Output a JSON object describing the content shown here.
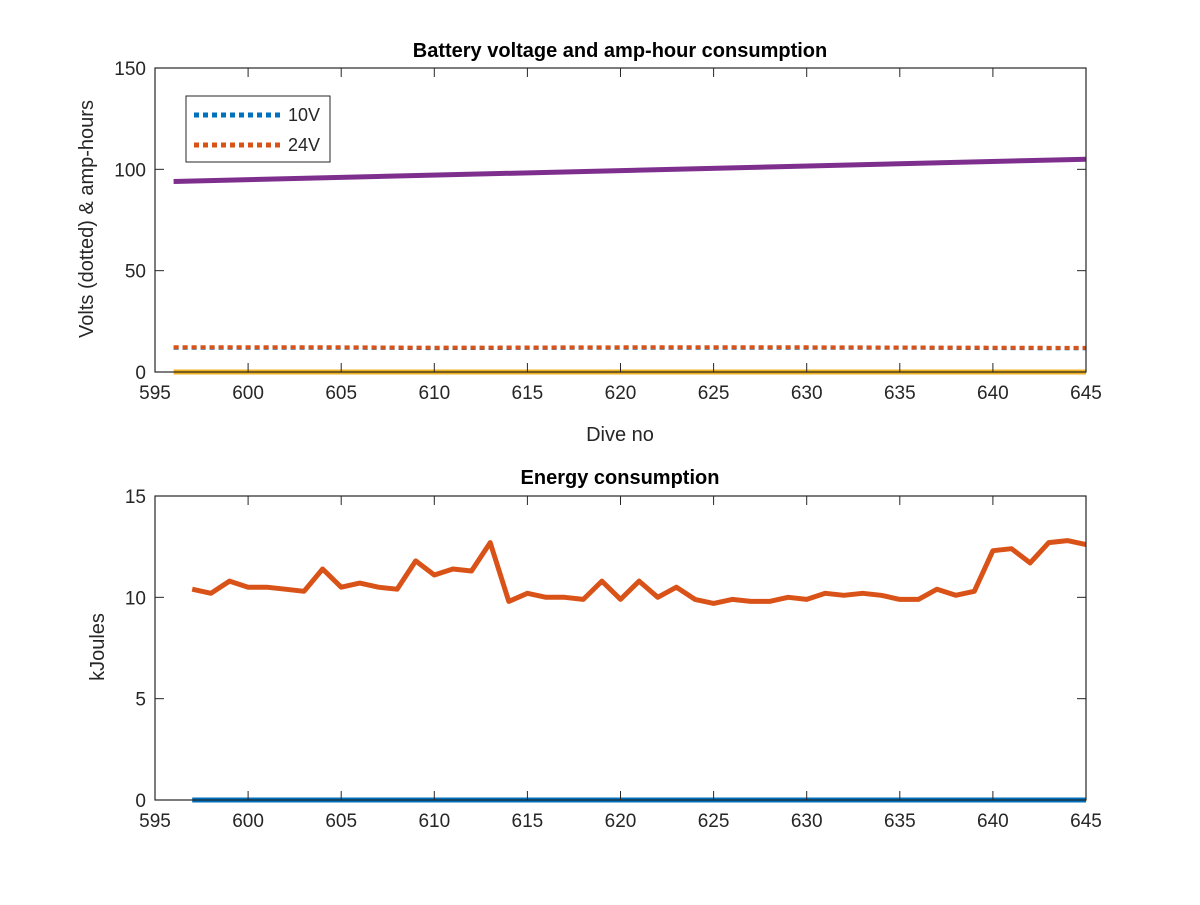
{
  "chart_data": [
    {
      "type": "line",
      "title": "Battery voltage and amp-hour consumption",
      "xlabel": "Dive no",
      "ylabel": "Volts (dotted) & amp-hours",
      "xlim": [
        595,
        645
      ],
      "ylim": [
        0,
        150
      ],
      "xticks": [
        "595",
        "600",
        "605",
        "610",
        "615",
        "620",
        "625",
        "630",
        "635",
        "640",
        "645"
      ],
      "yticks": [
        "0",
        "50",
        "100",
        "150"
      ],
      "grid": false,
      "legend_position": "top-left",
      "series": [
        {
          "name": "10V",
          "style": "dotted",
          "color": "#0072BD",
          "x": [
            596,
            600,
            605,
            610,
            615,
            620,
            625,
            630,
            635,
            640,
            645
          ],
          "y": [
            12,
            12,
            12,
            11.8,
            11.9,
            12,
            12,
            12,
            12,
            11.8,
            11.7
          ]
        },
        {
          "name": "24V",
          "style": "dotted",
          "color": "#D95319",
          "x": [
            596,
            600,
            605,
            610,
            615,
            620,
            625,
            630,
            635,
            640,
            645
          ],
          "y": [
            12.2,
            12.2,
            12.2,
            12,
            12.1,
            12.2,
            12.2,
            12.2,
            12.1,
            12,
            11.9
          ]
        },
        {
          "style": "solid",
          "color": "#EDB120",
          "x": [
            596,
            645
          ],
          "y": [
            0,
            0
          ]
        },
        {
          "style": "solid",
          "color": "#7E2F8E",
          "x": [
            596,
            645
          ],
          "y": [
            94,
            105
          ]
        }
      ]
    },
    {
      "type": "line",
      "title": "Energy consumption",
      "xlabel": "",
      "ylabel": "kJoules",
      "xlim": [
        595,
        645
      ],
      "ylim": [
        0,
        15
      ],
      "xticks": [
        "595",
        "600",
        "605",
        "610",
        "615",
        "620",
        "625",
        "630",
        "635",
        "640",
        "645"
      ],
      "yticks": [
        "0",
        "5",
        "10",
        "15"
      ],
      "grid": false,
      "series": [
        {
          "style": "solid",
          "color": "#0072BD",
          "x": [
            597,
            645
          ],
          "y": [
            0,
            0
          ]
        },
        {
          "style": "solid",
          "color": "#D95319",
          "x": [
            597,
            598,
            599,
            600,
            601,
            602,
            603,
            604,
            605,
            606,
            607,
            608,
            609,
            610,
            611,
            612,
            613,
            614,
            615,
            616,
            617,
            618,
            619,
            620,
            621,
            622,
            623,
            624,
            625,
            626,
            627,
            628,
            629,
            630,
            631,
            632,
            633,
            634,
            635,
            636,
            637,
            638,
            639,
            640,
            641,
            642,
            643,
            644,
            645
          ],
          "y": [
            10.4,
            10.2,
            10.8,
            10.5,
            10.5,
            10.4,
            10.3,
            11.4,
            10.5,
            10.7,
            10.5,
            10.4,
            11.8,
            11.1,
            11.4,
            11.3,
            12.7,
            9.8,
            10.2,
            10.0,
            10.0,
            9.9,
            10.8,
            9.9,
            10.8,
            10.0,
            10.5,
            9.9,
            9.7,
            9.9,
            9.8,
            9.8,
            10.0,
            9.9,
            10.2,
            10.1,
            10.2,
            10.1,
            9.9,
            9.9,
            10.4,
            10.1,
            10.3,
            12.3,
            12.4,
            11.7,
            12.7,
            12.8,
            12.6
          ]
        }
      ]
    }
  ]
}
